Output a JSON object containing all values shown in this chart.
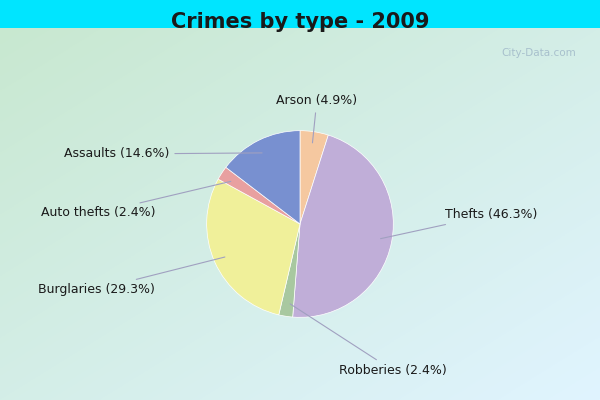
{
  "title": "Crimes by type - 2009",
  "title_fontsize": 15,
  "labels_ordered": [
    "Arson",
    "Thefts",
    "Robberies",
    "Burglaries",
    "Auto thefts",
    "Assaults"
  ],
  "percentages_ordered": [
    4.9,
    46.3,
    2.4,
    29.3,
    2.4,
    14.6
  ],
  "colors_ordered": [
    "#f5c8a0",
    "#c0aed8",
    "#a8c8a0",
    "#f0f09a",
    "#e8a0a0",
    "#7890d0"
  ],
  "label_texts": [
    "Arson (4.9%)",
    "Thefts (46.3%)",
    "Robberies (2.4%)",
    "Burglaries (29.3%)",
    "Auto thefts (2.4%)",
    "Assaults (14.6%)"
  ],
  "bg_outer": "#00e5ff",
  "bg_inner_tl": "#c8e8d0",
  "bg_inner_br": "#d8eef8",
  "startangle": 90,
  "label_fontsize": 9,
  "label_color": "#1a1a1a",
  "line_color": "#a0a0c0",
  "watermark": "City-Data.com",
  "watermark_color": "#a0b8c8"
}
